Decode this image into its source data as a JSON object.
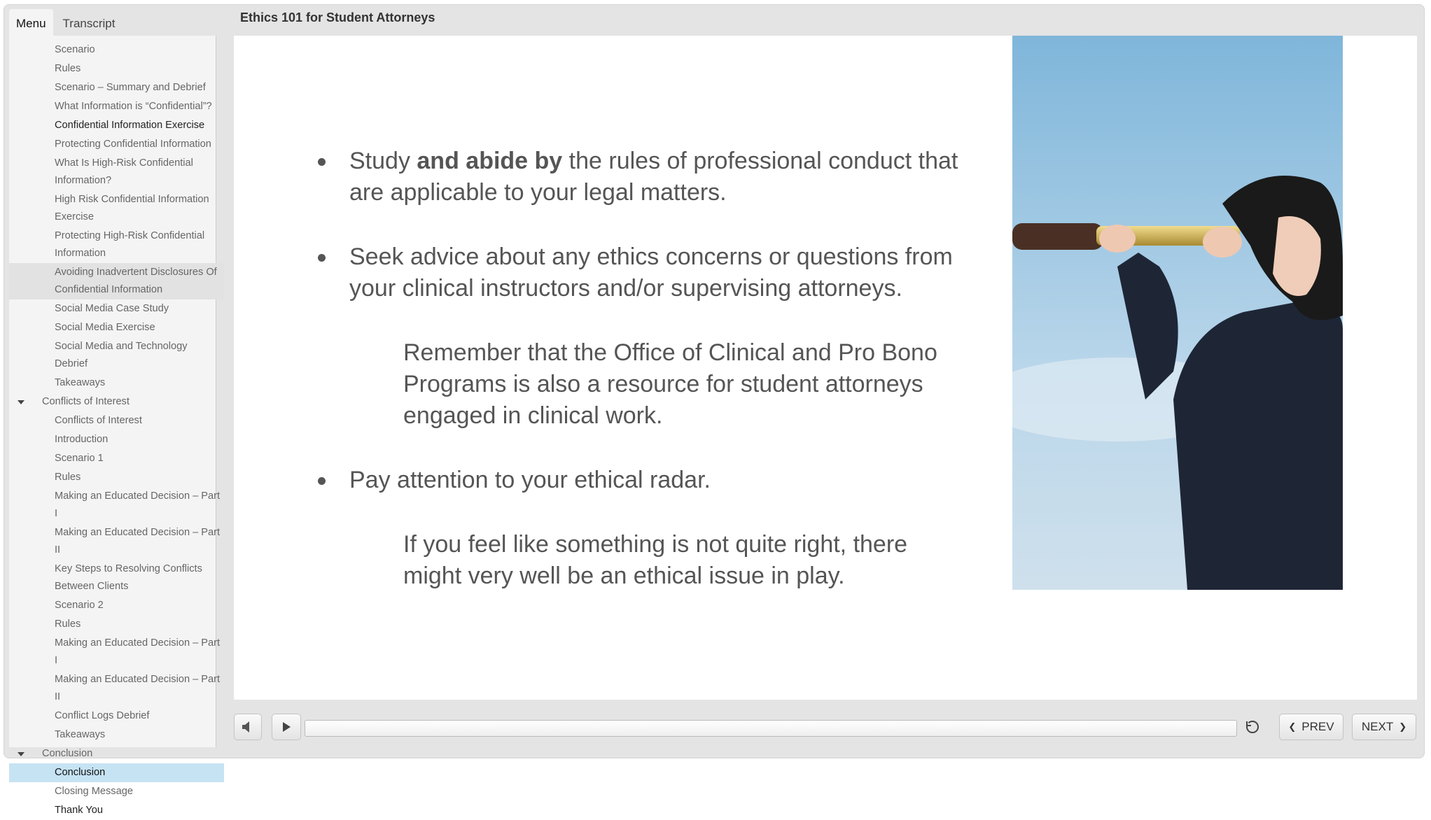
{
  "header": {
    "title": "Ethics 101 for Student Attorneys"
  },
  "sidebar": {
    "tabs": [
      "Menu",
      "Transcript"
    ],
    "items": [
      {
        "label": "Scenario",
        "level": 2
      },
      {
        "label": "Rules",
        "level": 2
      },
      {
        "label": "Scenario – Summary and Debrief",
        "level": 2
      },
      {
        "label": "What Information is “Confidential”?",
        "level": 2
      },
      {
        "label": "Confidential Information Exercise",
        "level": 2,
        "visited": true
      },
      {
        "label": "Protecting Confidential Information",
        "level": 2
      },
      {
        "label": "What Is High-Risk Confidential Information?",
        "level": 2
      },
      {
        "label": "High Risk Confidential Information Exercise",
        "level": 2
      },
      {
        "label": "Protecting High-Risk Confidential Information",
        "level": 2
      },
      {
        "label": "Avoiding Inadvertent Disclosures Of Confidential Information",
        "level": 2,
        "hover": true
      },
      {
        "label": "Social Media Case Study",
        "level": 2
      },
      {
        "label": "Social Media Exercise",
        "level": 2
      },
      {
        "label": "Social Media and Technology Debrief",
        "level": 2
      },
      {
        "label": "Takeaways",
        "level": 2
      },
      {
        "label": "Conflicts of Interest",
        "level": 1
      },
      {
        "label": "Conflicts of Interest",
        "level": 2
      },
      {
        "label": "Introduction",
        "level": 2
      },
      {
        "label": "Scenario 1",
        "level": 2
      },
      {
        "label": "Rules",
        "level": 2
      },
      {
        "label": "Making an Educated Decision – Part I",
        "level": 2
      },
      {
        "label": "Making an Educated Decision – Part II",
        "level": 2
      },
      {
        "label": "Key Steps to Resolving Conflicts Between Clients",
        "level": 2
      },
      {
        "label": "Scenario 2",
        "level": 2
      },
      {
        "label": "Rules",
        "level": 2
      },
      {
        "label": "Making an Educated Decision – Part I",
        "level": 2
      },
      {
        "label": "Making an Educated Decision – Part II",
        "level": 2
      },
      {
        "label": "Conflict Logs Debrief",
        "level": 2
      },
      {
        "label": "Takeaways",
        "level": 2
      },
      {
        "label": "Conclusion",
        "level": 1
      },
      {
        "label": "Conclusion",
        "level": 2,
        "selected": true
      },
      {
        "label": "Closing Message",
        "level": 2
      },
      {
        "label": "Thank You",
        "level": 2,
        "visited": true
      }
    ]
  },
  "slide": {
    "blocks": [
      {
        "kind": "bullet",
        "parts": [
          {
            "text": "Study "
          },
          {
            "text": "and abide by",
            "bold": true
          },
          {
            "text": " the rules of professional conduct that are applicable to your legal matters."
          }
        ]
      },
      {
        "kind": "bullet",
        "parts": [
          {
            "text": "Seek advice about any ethics concerns or questions from your clinical instructors and/or supervising attorneys."
          }
        ]
      },
      {
        "kind": "note",
        "parts": [
          {
            "text": "Remember that the Office of Clinical and Pro Bono Programs is also a resource for student attorneys engaged in clinical work."
          }
        ]
      },
      {
        "kind": "bullet",
        "parts": [
          {
            "text": "Pay attention to your ethical radar."
          }
        ]
      },
      {
        "kind": "note",
        "parts": [
          {
            "text": "If you feel like something is not quite right, there might very well be an ethical issue in play."
          }
        ]
      }
    ]
  },
  "controls": {
    "prev": "PREV",
    "next": "NEXT"
  }
}
